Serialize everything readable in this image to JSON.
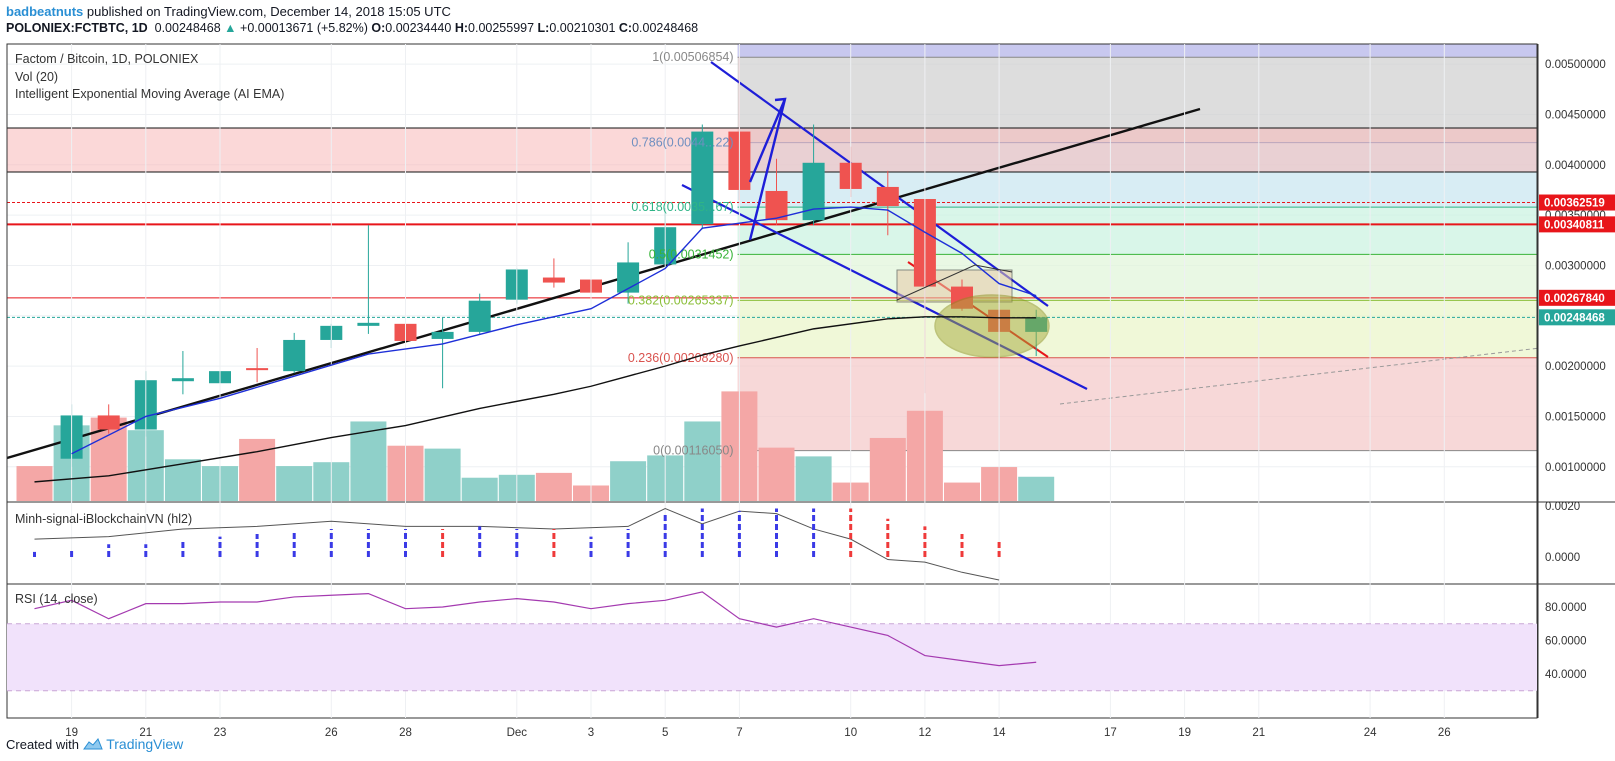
{
  "header": {
    "author": "badbeatnuts",
    "published": "published on TradingView.com, December 14, 2018 15:05 UTC",
    "symbol": "POLONIEX:FCTBTC, 1D",
    "last": "0.00248468",
    "change": "+0.00013671 (+5.82%)",
    "o_label": "O:",
    "o": "0.00234440",
    "h_label": "H:",
    "h": "0.00255997",
    "l_label": "L:",
    "l": "0.00210301",
    "c_label": "C:",
    "c": "0.00248468"
  },
  "legend": {
    "title": "Factom / Bitcoin, 1D, POLONIEX",
    "vol": "Vol (20)",
    "ema": "Intelligent Exponential Moving Average (AI EMA)",
    "signal": "Minh-signal-iBlockchainVN (hl2)",
    "rsi": "RSI (14, close)"
  },
  "footer": {
    "created": "Created with",
    "brand": "TradingView"
  },
  "colors": {
    "up": "#26a69a",
    "down": "#ef5350",
    "vol_up": "#8fd0c9",
    "vol_down": "#f4a7a6",
    "trend_blue": "#1e1ed8",
    "trend_black": "#111111",
    "rsi_line": "#a43ab0",
    "rsi_band": "#f1e2fb",
    "price_tag_red": "#e8151a",
    "price_tag_teal": "#26a69a"
  },
  "chart_data": {
    "type": "candlestick",
    "x_ticks": [
      {
        "label": "19",
        "day": 1
      },
      {
        "label": "21",
        "day": 3
      },
      {
        "label": "23",
        "day": 5
      },
      {
        "label": "26",
        "day": 8
      },
      {
        "label": "28",
        "day": 10
      },
      {
        "label": "Dec",
        "day": 13
      },
      {
        "label": "3",
        "day": 15
      },
      {
        "label": "5",
        "day": 17
      },
      {
        "label": "7",
        "day": 19
      },
      {
        "label": "10",
        "day": 22
      },
      {
        "label": "12",
        "day": 24
      },
      {
        "label": "14",
        "day": 26
      },
      {
        "label": "17",
        "day": 29
      },
      {
        "label": "19",
        "day": 31
      },
      {
        "label": "21",
        "day": 33
      },
      {
        "label": "24",
        "day": 36
      },
      {
        "label": "26",
        "day": 38
      }
    ],
    "price_axis": {
      "range": [
        0.00066,
        0.0052
      ],
      "ticks": [
        "0.00500000",
        "0.00450000",
        "0.00400000",
        "0.00350000",
        "0.00300000",
        "0.00250000",
        "0.00200000",
        "0.00150000",
        "0.00100000"
      ]
    },
    "price_tags": [
      {
        "label": "0.00362519",
        "value": 0.00362519,
        "color": "red"
      },
      {
        "label": "0.00340811",
        "value": 0.00340811,
        "color": "red"
      },
      {
        "label": "0.00267840",
        "value": 0.0026784,
        "color": "red"
      },
      {
        "label": "0.00248468",
        "value": 0.00248468,
        "color": "teal"
      }
    ],
    "candles": [
      {
        "d": 1,
        "o": 0.00108,
        "h": 0.00162,
        "l": 0.001,
        "c": 0.00151
      },
      {
        "d": 2,
        "o": 0.00151,
        "h": 0.00162,
        "l": 0.00133,
        "c": 0.00137
      },
      {
        "d": 3,
        "o": 0.00137,
        "h": 0.00195,
        "l": 0.0013,
        "c": 0.00186
      },
      {
        "d": 4,
        "o": 0.00185,
        "h": 0.00215,
        "l": 0.00172,
        "c": 0.00188
      },
      {
        "d": 5,
        "o": 0.00183,
        "h": 0.00205,
        "l": 0.00175,
        "c": 0.00195
      },
      {
        "d": 6,
        "o": 0.00198,
        "h": 0.00218,
        "l": 0.00184,
        "c": 0.00196
      },
      {
        "d": 7,
        "o": 0.00195,
        "h": 0.00233,
        "l": 0.00193,
        "c": 0.00226
      },
      {
        "d": 8,
        "o": 0.00226,
        "h": 0.00242,
        "l": 0.00218,
        "c": 0.0024
      },
      {
        "d": 9,
        "o": 0.0024,
        "h": 0.0034,
        "l": 0.00232,
        "c": 0.00243
      },
      {
        "d": 10,
        "o": 0.00242,
        "h": 0.0025,
        "l": 0.00191,
        "c": 0.00225
      },
      {
        "d": 11,
        "o": 0.00227,
        "h": 0.00248,
        "l": 0.00178,
        "c": 0.00234
      },
      {
        "d": 12,
        "o": 0.00234,
        "h": 0.00272,
        "l": 0.00232,
        "c": 0.00265
      },
      {
        "d": 13,
        "o": 0.00266,
        "h": 0.00297,
        "l": 0.00262,
        "c": 0.00296
      },
      {
        "d": 14,
        "o": 0.00288,
        "h": 0.00307,
        "l": 0.00278,
        "c": 0.00283
      },
      {
        "d": 15,
        "o": 0.00286,
        "h": 0.003,
        "l": 0.0027,
        "c": 0.00273
      },
      {
        "d": 16,
        "o": 0.00273,
        "h": 0.00323,
        "l": 0.00262,
        "c": 0.00303
      },
      {
        "d": 17,
        "o": 0.00301,
        "h": 0.00357,
        "l": 0.00298,
        "c": 0.00338
      },
      {
        "d": 18,
        "o": 0.00341,
        "h": 0.0044,
        "l": 0.00336,
        "c": 0.00433
      },
      {
        "d": 19,
        "o": 0.00433,
        "h": 0.00507,
        "l": 0.00365,
        "c": 0.00375
      },
      {
        "d": 20,
        "o": 0.00374,
        "h": 0.00406,
        "l": 0.0034,
        "c": 0.00345
      },
      {
        "d": 21,
        "o": 0.00345,
        "h": 0.0044,
        "l": 0.0034,
        "c": 0.00402
      },
      {
        "d": 22,
        "o": 0.00402,
        "h": 0.00418,
        "l": 0.00368,
        "c": 0.00376
      },
      {
        "d": 23,
        "o": 0.00378,
        "h": 0.00394,
        "l": 0.0033,
        "c": 0.00359
      },
      {
        "d": 24,
        "o": 0.00366,
        "h": 0.00366,
        "l": 0.00173,
        "c": 0.00279
      },
      {
        "d": 25,
        "o": 0.00279,
        "h": 0.00286,
        "l": 0.00255,
        "c": 0.00257
      },
      {
        "d": 26,
        "o": 0.00256,
        "h": 0.00262,
        "l": 0.00213,
        "c": 0.00234
      },
      {
        "d": 27,
        "o": 0.00234,
        "h": 0.00256,
        "l": 0.0021,
        "c": 0.00248468
      }
    ],
    "volume": [
      {
        "d": 0,
        "v": 0.36,
        "up": false
      },
      {
        "d": 1,
        "v": 0.78,
        "up": true
      },
      {
        "d": 2,
        "v": 0.86,
        "up": false
      },
      {
        "d": 3,
        "v": 0.73,
        "up": true
      },
      {
        "d": 4,
        "v": 0.43,
        "up": true
      },
      {
        "d": 5,
        "v": 0.36,
        "up": true
      },
      {
        "d": 6,
        "v": 0.64,
        "up": false
      },
      {
        "d": 7,
        "v": 0.36,
        "up": true
      },
      {
        "d": 8,
        "v": 0.4,
        "up": true
      },
      {
        "d": 9,
        "v": 0.82,
        "up": true
      },
      {
        "d": 10,
        "v": 0.57,
        "up": false
      },
      {
        "d": 11,
        "v": 0.54,
        "up": true
      },
      {
        "d": 12,
        "v": 0.24,
        "up": true
      },
      {
        "d": 13,
        "v": 0.27,
        "up": true
      },
      {
        "d": 14,
        "v": 0.29,
        "up": false
      },
      {
        "d": 15,
        "v": 0.16,
        "up": false
      },
      {
        "d": 16,
        "v": 0.41,
        "up": true
      },
      {
        "d": 17,
        "v": 0.47,
        "up": true
      },
      {
        "d": 18,
        "v": 0.82,
        "up": true
      },
      {
        "d": 19,
        "v": 1.13,
        "up": false
      },
      {
        "d": 20,
        "v": 0.55,
        "up": false
      },
      {
        "d": 21,
        "v": 0.46,
        "up": true
      },
      {
        "d": 22,
        "v": 0.19,
        "up": false
      },
      {
        "d": 23,
        "v": 0.65,
        "up": false
      },
      {
        "d": 24,
        "v": 0.93,
        "up": false
      },
      {
        "d": 25,
        "v": 0.19,
        "up": false
      },
      {
        "d": 26,
        "v": 0.35,
        "up": false
      },
      {
        "d": 27,
        "v": 0.25,
        "up": true
      }
    ],
    "ai_ema": [
      [
        1,
        0.00113
      ],
      [
        3,
        0.0015
      ],
      [
        5,
        0.00168
      ],
      [
        7,
        0.0019
      ],
      [
        9,
        0.00212
      ],
      [
        11,
        0.00222
      ],
      [
        13,
        0.00241
      ],
      [
        15,
        0.00257
      ],
      [
        17,
        0.00297
      ],
      [
        18,
        0.00337
      ],
      [
        19,
        0.00342
      ],
      [
        20,
        0.00347
      ],
      [
        21,
        0.00356
      ],
      [
        22,
        0.00358
      ],
      [
        23,
        0.00355
      ],
      [
        24,
        0.00333
      ],
      [
        25,
        0.00312
      ],
      [
        26,
        0.00282
      ],
      [
        27,
        0.0027
      ]
    ],
    "ema_long": [
      [
        0,
        0.00085
      ],
      [
        2,
        0.00091
      ],
      [
        4,
        0.00103
      ],
      [
        6,
        0.00115
      ],
      [
        8,
        0.00129
      ],
      [
        10,
        0.00141
      ],
      [
        12,
        0.00158
      ],
      [
        14,
        0.00172
      ],
      [
        15,
        0.0018
      ],
      [
        16,
        0.0019
      ],
      [
        17,
        0.002
      ],
      [
        18,
        0.00211
      ],
      [
        19,
        0.0022
      ],
      [
        21,
        0.00237
      ],
      [
        23,
        0.00247
      ],
      [
        24,
        0.00249
      ],
      [
        25,
        0.00249
      ],
      [
        26,
        0.00248
      ],
      [
        27,
        0.00248
      ]
    ],
    "fibonacci": [
      {
        "ratio": "1",
        "label": "1(0.00506854)",
        "value": 0.00506854
      },
      {
        "ratio": "0.786",
        "label": "0.786(0.0044...22)",
        "value": 0.00422
      },
      {
        "ratio": "0.618",
        "label": "0.618(0.0035...67)",
        "value": 0.00358
      },
      {
        "ratio": "0.5",
        "label": "0.5(0.0031452)",
        "value": 0.00311
      },
      {
        "ratio": "0.382",
        "label": "0.382(0.00265337)",
        "value": 0.00265337
      },
      {
        "ratio": "0.236",
        "label": "0.236(0.00208280)",
        "value": 0.0020828
      },
      {
        "ratio": "0",
        "label": "0(0.00116050)",
        "value": 0.0011605
      }
    ],
    "signal_axis": {
      "ticks": [
        "0.0020",
        "0.0000"
      ]
    },
    "signal": [
      {
        "d": 0,
        "v": 0.0002,
        "up": true
      },
      {
        "d": 1,
        "v": 0.0003,
        "up": true
      },
      {
        "d": 2,
        "v": 0.0005,
        "up": true
      },
      {
        "d": 3,
        "v": 0.0005,
        "up": true
      },
      {
        "d": 4,
        "v": 0.0006,
        "up": true
      },
      {
        "d": 5,
        "v": 0.0008,
        "up": true
      },
      {
        "d": 6,
        "v": 0.0009,
        "up": true
      },
      {
        "d": 7,
        "v": 0.001,
        "up": true
      },
      {
        "d": 8,
        "v": 0.0011,
        "up": true
      },
      {
        "d": 9,
        "v": 0.0011,
        "up": true
      },
      {
        "d": 10,
        "v": 0.0011,
        "up": true
      },
      {
        "d": 11,
        "v": 0.0011,
        "up": false
      },
      {
        "d": 12,
        "v": 0.0012,
        "up": true
      },
      {
        "d": 13,
        "v": 0.0011,
        "up": true
      },
      {
        "d": 14,
        "v": 0.0011,
        "up": false
      },
      {
        "d": 15,
        "v": 0.0008,
        "up": true
      },
      {
        "d": 16,
        "v": 0.0011,
        "up": true
      },
      {
        "d": 17,
        "v": 0.0017,
        "up": true
      },
      {
        "d": 18,
        "v": 0.0019,
        "up": true
      },
      {
        "d": 19,
        "v": 0.0018,
        "up": true
      },
      {
        "d": 20,
        "v": 0.0019,
        "up": true
      },
      {
        "d": 21,
        "v": 0.0019,
        "up": true
      },
      {
        "d": 22,
        "v": 0.0019,
        "up": false
      },
      {
        "d": 23,
        "v": 0.0015,
        "up": false
      },
      {
        "d": 24,
        "v": 0.0012,
        "up": false
      },
      {
        "d": 25,
        "v": 0.0009,
        "up": false
      },
      {
        "d": 26,
        "v": 0.0007,
        "up": false
      }
    ],
    "signal_line": [
      [
        0,
        0.0007
      ],
      [
        2,
        0.0008
      ],
      [
        4,
        0.0011
      ],
      [
        6,
        0.0012
      ],
      [
        8,
        0.0014
      ],
      [
        10,
        0.0012
      ],
      [
        12,
        0.0012
      ],
      [
        14,
        0.0011
      ],
      [
        16,
        0.0012
      ],
      [
        17,
        0.0019
      ],
      [
        18,
        0.0013
      ],
      [
        19,
        0.0018
      ],
      [
        20,
        0.0017
      ],
      [
        21,
        0.0011
      ],
      [
        22,
        0.0007
      ],
      [
        23,
        -0.0001
      ],
      [
        24,
        -0.0002
      ],
      [
        25,
        -0.0006
      ],
      [
        26,
        -0.0009
      ]
    ],
    "rsi_axis": {
      "ticks": [
        "80.0000",
        "60.0000",
        "40.0000"
      ],
      "band": [
        30,
        70
      ]
    },
    "rsi": [
      [
        0,
        79
      ],
      [
        1,
        84
      ],
      [
        2,
        73
      ],
      [
        3,
        82
      ],
      [
        4,
        82
      ],
      [
        5,
        83
      ],
      [
        6,
        83
      ],
      [
        7,
        86
      ],
      [
        8,
        87
      ],
      [
        9,
        88
      ],
      [
        10,
        79
      ],
      [
        11,
        80
      ],
      [
        12,
        83
      ],
      [
        13,
        85
      ],
      [
        14,
        83
      ],
      [
        15,
        79
      ],
      [
        16,
        82
      ],
      [
        17,
        84
      ],
      [
        18,
        89
      ],
      [
        19,
        73
      ],
      [
        20,
        68
      ],
      [
        21,
        73
      ],
      [
        22,
        68
      ],
      [
        23,
        63
      ],
      [
        24,
        51
      ],
      [
        25,
        48
      ],
      [
        26,
        45
      ],
      [
        27,
        47
      ]
    ]
  }
}
